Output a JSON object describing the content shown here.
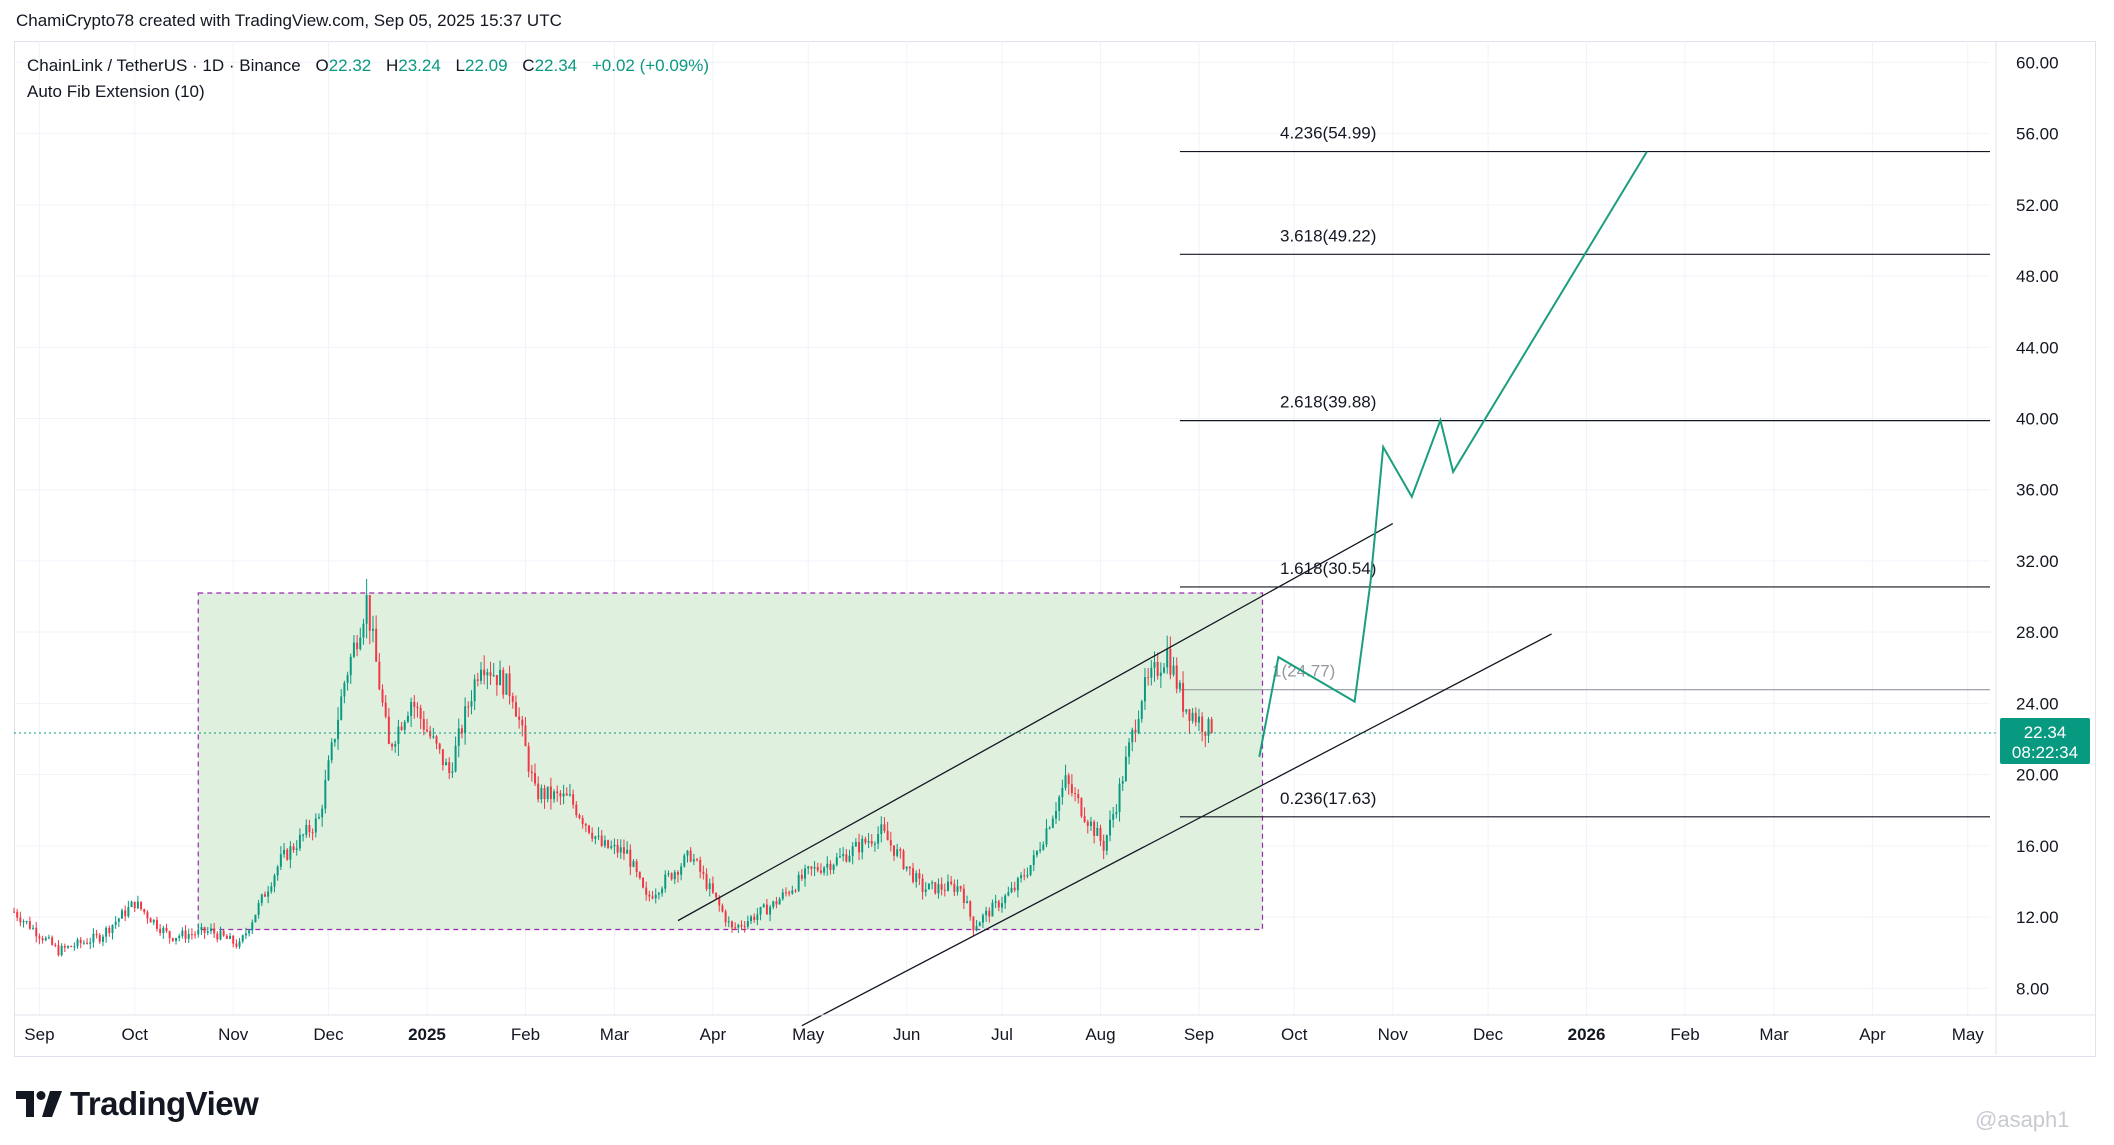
{
  "header": {
    "text": "ChamiCrypto78 created with TradingView.com, Sep 05, 2025 15:37 UTC"
  },
  "legend": {
    "symbol": "ChainLink / TetherUS · 1D · Binance",
    "open_label": "O",
    "open": "22.32",
    "high_label": "H",
    "high": "23.24",
    "low_label": "L",
    "low": "22.09",
    "close_label": "C",
    "close": "22.34",
    "change": "+0.02 (+0.09%)",
    "indicator": "Auto Fib Extension (10)"
  },
  "price_tag": {
    "price": "22.34",
    "countdown": "08:22:34"
  },
  "logo": {
    "text": "TradingView",
    "icon": "tradingview-logo-icon"
  },
  "watermark": {
    "text": "@asaph1"
  },
  "colors": {
    "up": "#089981",
    "down": "#f23645",
    "zone_fill": "#ddefdc",
    "zone_border": "#9c27b0",
    "projection": "#1a9e7f",
    "line": "#131722",
    "grid": "#f0f3fa"
  },
  "chart_data": {
    "type": "candlestick",
    "symbol": "ChainLink / TetherUS",
    "timeframe": "1D",
    "y_axis": {
      "ticks": [
        "60.00",
        "56.00",
        "52.00",
        "48.00",
        "44.00",
        "40.00",
        "36.00",
        "32.00",
        "28.00",
        "24.00",
        "20.00",
        "16.00",
        "12.00",
        "8.00"
      ],
      "range": [
        6.5,
        61.2
      ]
    },
    "x_axis": {
      "ticks": [
        {
          "label": "Sep",
          "date": "2024-09-01"
        },
        {
          "label": "Oct",
          "date": "2024-10-01"
        },
        {
          "label": "Nov",
          "date": "2024-11-01"
        },
        {
          "label": "Dec",
          "date": "2024-12-01"
        },
        {
          "label": "2025",
          "date": "2025-01-01",
          "bold": true
        },
        {
          "label": "Feb",
          "date": "2025-02-01"
        },
        {
          "label": "Mar",
          "date": "2025-03-01"
        },
        {
          "label": "Apr",
          "date": "2025-04-01"
        },
        {
          "label": "May",
          "date": "2025-05-01"
        },
        {
          "label": "Jun",
          "date": "2025-06-01"
        },
        {
          "label": "Jul",
          "date": "2025-07-01"
        },
        {
          "label": "Aug",
          "date": "2025-08-01"
        },
        {
          "label": "Sep",
          "date": "2025-09-01"
        },
        {
          "label": "Oct",
          "date": "2025-10-01"
        },
        {
          "label": "Nov",
          "date": "2025-11-01"
        },
        {
          "label": "Dec",
          "date": "2025-12-01"
        },
        {
          "label": "2026",
          "date": "2026-01-01",
          "bold": true
        },
        {
          "label": "Feb",
          "date": "2026-02-01"
        },
        {
          "label": "Mar",
          "date": "2026-03-01"
        },
        {
          "label": "Apr",
          "date": "2026-04-01"
        },
        {
          "label": "May",
          "date": "2026-05-01"
        }
      ],
      "range": [
        "2024-08-24",
        "2026-05-08"
      ]
    },
    "price_path": [
      [
        "2024-08-24",
        12.3
      ],
      [
        "2024-09-07",
        10.1
      ],
      [
        "2024-09-20",
        10.9
      ],
      [
        "2024-10-01",
        12.8
      ],
      [
        "2024-10-12",
        10.9
      ],
      [
        "2024-10-25",
        11.2
      ],
      [
        "2024-11-03",
        10.4
      ],
      [
        "2024-11-16",
        15.2
      ],
      [
        "2024-11-28",
        17.5
      ],
      [
        "2024-12-06",
        25.2
      ],
      [
        "2024-12-13",
        29.8
      ],
      [
        "2024-12-20",
        21.5
      ],
      [
        "2024-12-27",
        24.2
      ],
      [
        "2025-01-08",
        20.1
      ],
      [
        "2025-01-18",
        26.5
      ],
      [
        "2025-01-28",
        24.6
      ],
      [
        "2025-02-04",
        19.0
      ],
      [
        "2025-02-15",
        18.6
      ],
      [
        "2025-02-25",
        16.0
      ],
      [
        "2025-03-05",
        15.6
      ],
      [
        "2025-03-11",
        13.0
      ],
      [
        "2025-03-25",
        15.5
      ],
      [
        "2025-04-07",
        11.3
      ],
      [
        "2025-04-20",
        12.7
      ],
      [
        "2025-05-01",
        14.5
      ],
      [
        "2025-05-11",
        15.3
      ],
      [
        "2025-05-24",
        16.8
      ],
      [
        "2025-06-06",
        13.6
      ],
      [
        "2025-06-18",
        13.7
      ],
      [
        "2025-06-22",
        11.5
      ],
      [
        "2025-07-05",
        13.6
      ],
      [
        "2025-07-11",
        15.2
      ],
      [
        "2025-07-21",
        19.6
      ],
      [
        "2025-08-02",
        16.0
      ],
      [
        "2025-08-06",
        18.4
      ],
      [
        "2025-08-14",
        24.5
      ],
      [
        "2025-08-22",
        26.9
      ],
      [
        "2025-08-27",
        24.0
      ],
      [
        "2025-09-05",
        22.34
      ]
    ],
    "fib_levels": [
      {
        "ratio": "4.236",
        "price": 54.99,
        "label": "4.236(54.99)"
      },
      {
        "ratio": "3.618",
        "price": 49.22,
        "label": "3.618(49.22)"
      },
      {
        "ratio": "2.618",
        "price": 39.88,
        "label": "2.618(39.88)"
      },
      {
        "ratio": "1.618",
        "price": 30.54,
        "label": "1.618(30.54)"
      },
      {
        "ratio": "1",
        "price": 24.77,
        "label": "1(24.77)"
      },
      {
        "ratio": "0.236",
        "price": 17.63,
        "label": "0.236(17.63)"
      }
    ],
    "fib_range": {
      "start": "2025-08-26",
      "end": "2026-05-08"
    },
    "accumulation_zone": {
      "start": "2024-10-21",
      "end": "2025-09-21",
      "top": 30.2,
      "bottom": 11.3
    },
    "channel_lines": [
      {
        "name": "upper",
        "from": [
          "2025-03-21",
          11.8
        ],
        "to": [
          "2025-11-01",
          34.1
        ]
      },
      {
        "name": "lower",
        "from": [
          "2025-04-29",
          5.9
        ],
        "to": [
          "2025-12-21",
          27.9
        ]
      }
    ],
    "projection_path": [
      [
        "2025-09-20",
        21.0
      ],
      [
        "2025-09-26",
        26.6
      ],
      [
        "2025-10-20",
        24.1
      ],
      [
        "2025-10-25",
        30.8
      ],
      [
        "2025-10-29",
        38.4
      ],
      [
        "2025-11-07",
        35.6
      ],
      [
        "2025-11-16",
        39.9
      ],
      [
        "2025-11-20",
        37.0
      ],
      [
        "2026-01-20",
        54.99
      ]
    ],
    "last_price": 22.34
  }
}
